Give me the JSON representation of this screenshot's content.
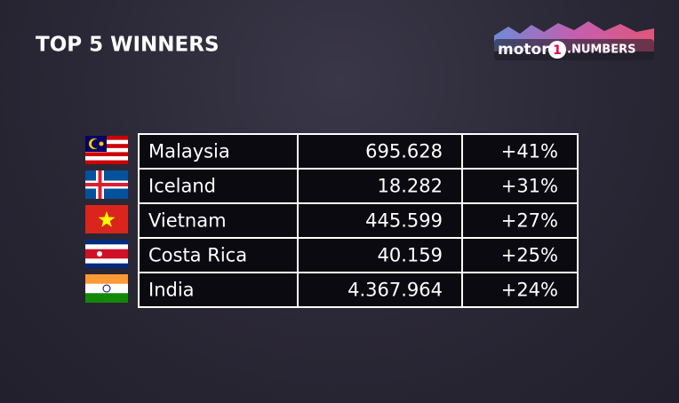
{
  "header": {
    "title": "TOP 5 WINNERS"
  },
  "logo": {
    "brand": "motor",
    "number": "1",
    "suffix": ".NUMBERS"
  },
  "table": {
    "rows": [
      [
        "Malaysia",
        "695.628",
        "+41%"
      ],
      [
        "Iceland",
        "18.282",
        "+31%"
      ],
      [
        "Vietnam",
        "445.599",
        "+27%"
      ],
      [
        "Costa Rica",
        "40.159",
        "+25%"
      ],
      [
        "India",
        "4.367.964",
        "+24%"
      ]
    ]
  }
}
